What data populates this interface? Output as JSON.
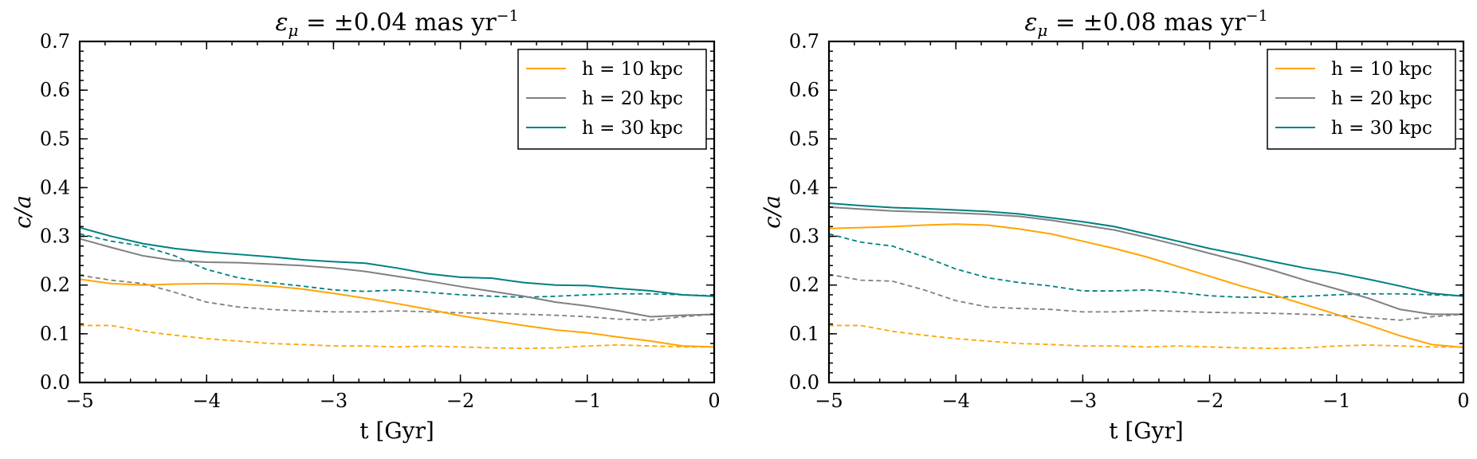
{
  "chart_data": [
    {
      "type": "line",
      "title_prefix": "ε",
      "title_subscript": "μ",
      "title_main": " = ±0.04 mas yr",
      "title_superscript": "−1",
      "xlabel": "t [Gyr]",
      "ylabel": "c/a",
      "xlim": [
        -5,
        0
      ],
      "ylim": [
        0,
        0.7
      ],
      "xticks": [
        -5,
        -4,
        -3,
        -2,
        -1,
        0
      ],
      "xtick_labels": [
        "−5",
        "−4",
        "−3",
        "−2",
        "−1",
        "0"
      ],
      "yticks": [
        0,
        0.1,
        0.2,
        0.3,
        0.4,
        0.5,
        0.6,
        0.7
      ],
      "ytick_labels": [
        "0.0",
        "0.1",
        "0.2",
        "0.3",
        "0.4",
        "0.5",
        "0.6",
        "0.7"
      ],
      "legend_position": "top-right",
      "series": [
        {
          "name": "h = 10 kpc",
          "color": "#FFA500",
          "style": "solid",
          "in_legend": true,
          "x": [
            -5,
            -4.75,
            -4.5,
            -4.25,
            -4,
            -3.75,
            -3.5,
            -3.25,
            -3,
            -2.75,
            -2.5,
            -2.25,
            -2,
            -1.75,
            -1.5,
            -1.25,
            -1,
            -0.75,
            -0.5,
            -0.25,
            0
          ],
          "y": [
            0.212,
            0.203,
            0.2,
            0.202,
            0.203,
            0.202,
            0.198,
            0.192,
            0.183,
            0.173,
            0.162,
            0.15,
            0.137,
            0.127,
            0.117,
            0.108,
            0.102,
            0.093,
            0.085,
            0.075,
            0.073
          ]
        },
        {
          "name": "h = 20 kpc",
          "color": "#808080",
          "style": "solid",
          "in_legend": true,
          "x": [
            -5,
            -4.75,
            -4.5,
            -4.25,
            -4,
            -3.75,
            -3.5,
            -3.25,
            -3,
            -2.75,
            -2.5,
            -2.25,
            -2,
            -1.75,
            -1.5,
            -1.25,
            -1,
            -0.75,
            -0.5,
            -0.25,
            0
          ],
          "y": [
            0.295,
            0.277,
            0.26,
            0.25,
            0.247,
            0.246,
            0.243,
            0.24,
            0.235,
            0.228,
            0.218,
            0.208,
            0.197,
            0.187,
            0.177,
            0.165,
            0.157,
            0.147,
            0.135,
            0.138,
            0.14
          ]
        },
        {
          "name": "h = 30 kpc",
          "color": "#008080",
          "style": "solid",
          "in_legend": true,
          "x": [
            -5,
            -4.75,
            -4.5,
            -4.25,
            -4,
            -3.75,
            -3.5,
            -3.25,
            -3,
            -2.75,
            -2.5,
            -2.25,
            -2,
            -1.75,
            -1.5,
            -1.25,
            -1,
            -0.75,
            -0.5,
            -0.25,
            0
          ],
          "y": [
            0.318,
            0.3,
            0.285,
            0.275,
            0.268,
            0.263,
            0.258,
            0.252,
            0.248,
            0.245,
            0.235,
            0.223,
            0.216,
            0.214,
            0.205,
            0.2,
            0.199,
            0.193,
            0.188,
            0.18,
            0.177
          ]
        },
        {
          "name": "h = 10 kpc (dashed)",
          "color": "#FFA500",
          "style": "dashed",
          "in_legend": false,
          "x": [
            -5,
            -4.75,
            -4.5,
            -4.25,
            -4,
            -3.75,
            -3.5,
            -3.25,
            -3,
            -2.75,
            -2.5,
            -2.25,
            -2,
            -1.75,
            -1.5,
            -1.25,
            -1,
            -0.75,
            -0.5,
            -0.25,
            0
          ],
          "y": [
            0.117,
            0.117,
            0.105,
            0.097,
            0.09,
            0.085,
            0.08,
            0.078,
            0.075,
            0.075,
            0.073,
            0.075,
            0.073,
            0.071,
            0.07,
            0.071,
            0.075,
            0.077,
            0.075,
            0.073,
            0.073
          ]
        },
        {
          "name": "h = 20 kpc (dashed)",
          "color": "#808080",
          "style": "dashed",
          "in_legend": false,
          "x": [
            -5,
            -4.75,
            -4.5,
            -4.25,
            -4,
            -3.75,
            -3.5,
            -3.25,
            -3,
            -2.75,
            -2.5,
            -2.25,
            -2,
            -1.75,
            -1.5,
            -1.25,
            -1,
            -0.75,
            -0.5,
            -0.25,
            0
          ],
          "y": [
            0.22,
            0.21,
            0.203,
            0.185,
            0.165,
            0.155,
            0.15,
            0.147,
            0.145,
            0.145,
            0.147,
            0.145,
            0.143,
            0.142,
            0.14,
            0.138,
            0.135,
            0.13,
            0.128,
            0.135,
            0.14
          ]
        },
        {
          "name": "h = 30 kpc (dashed)",
          "color": "#008080",
          "style": "dashed",
          "in_legend": false,
          "x": [
            -5,
            -4.75,
            -4.5,
            -4.25,
            -4,
            -3.75,
            -3.5,
            -3.25,
            -3,
            -2.75,
            -2.5,
            -2.25,
            -2,
            -1.75,
            -1.5,
            -1.25,
            -1,
            -0.75,
            -0.5,
            -0.25,
            0
          ],
          "y": [
            0.305,
            0.29,
            0.28,
            0.26,
            0.232,
            0.215,
            0.205,
            0.198,
            0.19,
            0.187,
            0.19,
            0.185,
            0.18,
            0.177,
            0.175,
            0.177,
            0.18,
            0.182,
            0.182,
            0.18,
            0.178
          ]
        }
      ]
    },
    {
      "type": "line",
      "title_prefix": "ε",
      "title_subscript": "μ",
      "title_main": " = ±0.08 mas yr",
      "title_superscript": "−1",
      "xlabel": "t [Gyr]",
      "ylabel": "c/a",
      "xlim": [
        -5,
        0
      ],
      "ylim": [
        0,
        0.7
      ],
      "xticks": [
        -5,
        -4,
        -3,
        -2,
        -1,
        0
      ],
      "xtick_labels": [
        "−5",
        "−4",
        "−3",
        "−2",
        "−1",
        "0"
      ],
      "yticks": [
        0,
        0.1,
        0.2,
        0.3,
        0.4,
        0.5,
        0.6,
        0.7
      ],
      "ytick_labels": [
        "0.0",
        "0.1",
        "0.2",
        "0.3",
        "0.4",
        "0.5",
        "0.6",
        "0.7"
      ],
      "legend_position": "top-right",
      "series": [
        {
          "name": "h = 10 kpc",
          "color": "#FFA500",
          "style": "solid",
          "in_legend": true,
          "x": [
            -5,
            -4.75,
            -4.5,
            -4.25,
            -4,
            -3.75,
            -3.5,
            -3.25,
            -3,
            -2.75,
            -2.5,
            -2.25,
            -2,
            -1.75,
            -1.5,
            -1.25,
            -1,
            -0.75,
            -0.5,
            -0.25,
            0
          ],
          "y": [
            0.316,
            0.318,
            0.32,
            0.323,
            0.325,
            0.323,
            0.315,
            0.305,
            0.29,
            0.275,
            0.258,
            0.238,
            0.218,
            0.198,
            0.18,
            0.16,
            0.14,
            0.118,
            0.096,
            0.078,
            0.072
          ]
        },
        {
          "name": "h = 20 kpc",
          "color": "#808080",
          "style": "solid",
          "in_legend": true,
          "x": [
            -5,
            -4.75,
            -4.5,
            -4.25,
            -4,
            -3.75,
            -3.5,
            -3.25,
            -3,
            -2.75,
            -2.5,
            -2.25,
            -2,
            -1.75,
            -1.5,
            -1.25,
            -1,
            -0.75,
            -0.5,
            -0.25,
            0
          ],
          "y": [
            0.36,
            0.356,
            0.352,
            0.35,
            0.348,
            0.345,
            0.341,
            0.333,
            0.323,
            0.313,
            0.298,
            0.282,
            0.265,
            0.248,
            0.23,
            0.21,
            0.192,
            0.173,
            0.15,
            0.14,
            0.14
          ]
        },
        {
          "name": "h = 30 kpc",
          "color": "#008080",
          "style": "solid",
          "in_legend": true,
          "x": [
            -5,
            -4.75,
            -4.5,
            -4.25,
            -4,
            -3.75,
            -3.5,
            -3.25,
            -3,
            -2.75,
            -2.5,
            -2.25,
            -2,
            -1.75,
            -1.5,
            -1.25,
            -1,
            -0.75,
            -0.5,
            -0.25,
            0
          ],
          "y": [
            0.368,
            0.363,
            0.359,
            0.357,
            0.354,
            0.351,
            0.346,
            0.338,
            0.33,
            0.32,
            0.305,
            0.29,
            0.275,
            0.262,
            0.248,
            0.235,
            0.225,
            0.212,
            0.198,
            0.183,
            0.177
          ]
        },
        {
          "name": "h = 10 kpc (dashed)",
          "color": "#FFA500",
          "style": "dashed",
          "in_legend": false,
          "x": [
            -5,
            -4.75,
            -4.5,
            -4.25,
            -4,
            -3.75,
            -3.5,
            -3.25,
            -3,
            -2.75,
            -2.5,
            -2.25,
            -2,
            -1.75,
            -1.5,
            -1.25,
            -1,
            -0.75,
            -0.5,
            -0.25,
            0
          ],
          "y": [
            0.117,
            0.117,
            0.105,
            0.097,
            0.09,
            0.085,
            0.08,
            0.078,
            0.075,
            0.075,
            0.073,
            0.075,
            0.073,
            0.071,
            0.07,
            0.071,
            0.075,
            0.077,
            0.075,
            0.073,
            0.073
          ]
        },
        {
          "name": "h = 20 kpc (dashed)",
          "color": "#808080",
          "style": "dashed",
          "in_legend": false,
          "x": [
            -5,
            -4.75,
            -4.5,
            -4.25,
            -4,
            -3.75,
            -3.5,
            -3.25,
            -3,
            -2.75,
            -2.5,
            -2.25,
            -2,
            -1.75,
            -1.5,
            -1.25,
            -1,
            -0.75,
            -0.5,
            -0.25,
            0
          ],
          "y": [
            0.222,
            0.21,
            0.208,
            0.19,
            0.168,
            0.155,
            0.152,
            0.15,
            0.145,
            0.145,
            0.148,
            0.146,
            0.144,
            0.143,
            0.142,
            0.14,
            0.138,
            0.133,
            0.128,
            0.135,
            0.14
          ]
        },
        {
          "name": "h = 30 kpc (dashed)",
          "color": "#008080",
          "style": "dashed",
          "in_legend": false,
          "x": [
            -5,
            -4.75,
            -4.5,
            -4.25,
            -4,
            -3.75,
            -3.5,
            -3.25,
            -3,
            -2.75,
            -2.5,
            -2.25,
            -2,
            -1.75,
            -1.5,
            -1.25,
            -1,
            -0.75,
            -0.5,
            -0.25,
            0
          ],
          "y": [
            0.305,
            0.288,
            0.28,
            0.258,
            0.233,
            0.215,
            0.205,
            0.198,
            0.188,
            0.188,
            0.19,
            0.185,
            0.178,
            0.175,
            0.175,
            0.177,
            0.18,
            0.182,
            0.182,
            0.18,
            0.178
          ]
        }
      ]
    }
  ]
}
